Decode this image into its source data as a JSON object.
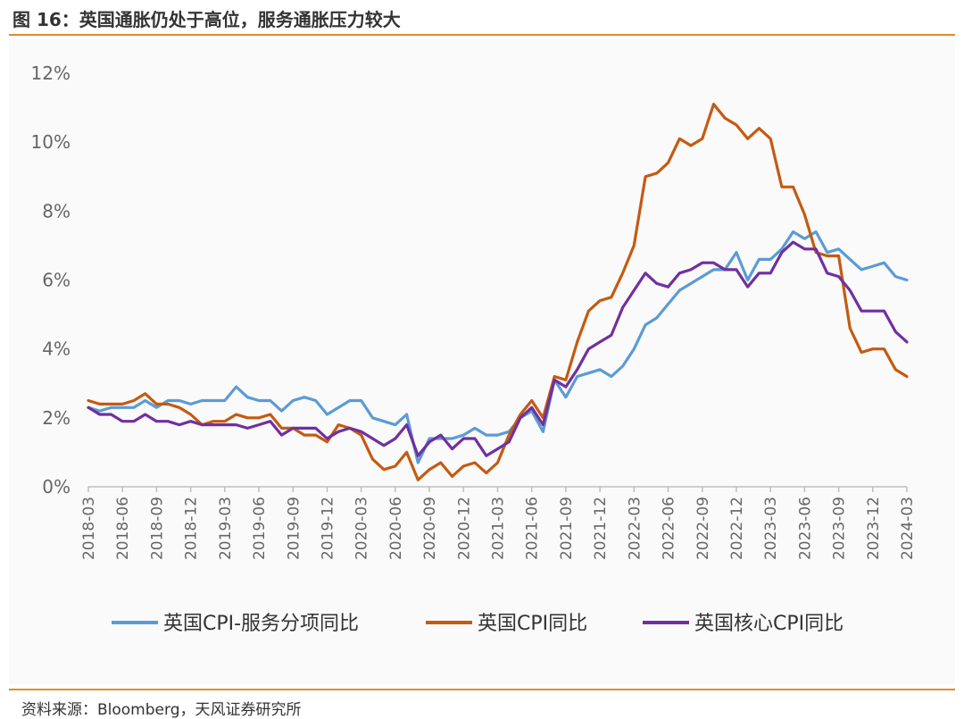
{
  "header": {
    "title": "图 16：英国通胀仍处于高位，服务通胀压力较大"
  },
  "footer": {
    "source": "资料来源：Bloomberg，天风证券研究所"
  },
  "colors": {
    "accent": "#e08a2c",
    "services": "#5b9bd5",
    "headline": "#c55a11",
    "core": "#7030a0"
  },
  "chart_data": {
    "type": "line",
    "xlabel": "",
    "ylabel": "",
    "ylim": [
      0,
      12
    ],
    "y_ticks": [
      "0%",
      "2%",
      "4%",
      "6%",
      "8%",
      "10%",
      "12%"
    ],
    "x_ticks": [
      "2018-03",
      "2018-06",
      "2018-09",
      "2018-12",
      "2019-03",
      "2019-06",
      "2019-09",
      "2019-12",
      "2020-03",
      "2020-06",
      "2020-09",
      "2020-12",
      "2021-03",
      "2021-06",
      "2021-09",
      "2021-12",
      "2022-03",
      "2022-06",
      "2022-09",
      "2022-12",
      "2023-03",
      "2023-06",
      "2023-09",
      "2023-12",
      "2024-03"
    ],
    "x_start": "2018-03",
    "grid": false,
    "legend": "bottom",
    "series": [
      {
        "name": "英国CPI-服务分项同比",
        "color": "#5b9bd5",
        "values": [
          2.3,
          2.2,
          2.3,
          2.3,
          2.3,
          2.5,
          2.3,
          2.5,
          2.5,
          2.4,
          2.5,
          2.5,
          2.5,
          2.9,
          2.6,
          2.5,
          2.5,
          2.2,
          2.5,
          2.6,
          2.5,
          2.1,
          2.3,
          2.5,
          2.5,
          2.0,
          1.9,
          1.8,
          2.1,
          0.7,
          1.4,
          1.4,
          1.4,
          1.5,
          1.7,
          1.5,
          1.5,
          1.6,
          2.0,
          2.2,
          1.6,
          3.1,
          2.6,
          3.2,
          3.3,
          3.4,
          3.2,
          3.5,
          4.0,
          4.7,
          4.9,
          5.3,
          5.7,
          5.9,
          6.1,
          6.3,
          6.3,
          6.8,
          6.0,
          6.6,
          6.6,
          6.9,
          7.4,
          7.2,
          7.4,
          6.8,
          6.9,
          6.6,
          6.3,
          6.4,
          6.5,
          6.1,
          6.0
        ]
      },
      {
        "name": "英国CPI同比",
        "color": "#c55a11",
        "values": [
          2.5,
          2.4,
          2.4,
          2.4,
          2.5,
          2.7,
          2.4,
          2.4,
          2.3,
          2.1,
          1.8,
          1.9,
          1.9,
          2.1,
          2.0,
          2.0,
          2.1,
          1.7,
          1.7,
          1.5,
          1.5,
          1.3,
          1.8,
          1.7,
          1.5,
          0.8,
          0.5,
          0.6,
          1.0,
          0.2,
          0.5,
          0.7,
          0.3,
          0.6,
          0.7,
          0.4,
          0.7,
          1.5,
          2.1,
          2.5,
          2.0,
          3.2,
          3.1,
          4.2,
          5.1,
          5.4,
          5.5,
          6.2,
          7.0,
          9.0,
          9.1,
          9.4,
          10.1,
          9.9,
          10.1,
          11.1,
          10.7,
          10.5,
          10.1,
          10.4,
          10.1,
          8.7,
          8.7,
          7.9,
          6.8,
          6.7,
          6.7,
          4.6,
          3.9,
          4.0,
          4.0,
          3.4,
          3.2
        ]
      },
      {
        "name": "英国核心CPI同比",
        "color": "#7030a0",
        "values": [
          2.3,
          2.1,
          2.1,
          1.9,
          1.9,
          2.1,
          1.9,
          1.9,
          1.8,
          1.9,
          1.8,
          1.8,
          1.8,
          1.8,
          1.7,
          1.8,
          1.9,
          1.5,
          1.7,
          1.7,
          1.7,
          1.4,
          1.6,
          1.7,
          1.6,
          1.4,
          1.2,
          1.4,
          1.8,
          0.9,
          1.3,
          1.5,
          1.1,
          1.4,
          1.4,
          0.9,
          1.1,
          1.3,
          2.0,
          2.3,
          1.8,
          3.1,
          2.9,
          3.4,
          4.0,
          4.2,
          4.4,
          5.2,
          5.7,
          6.2,
          5.9,
          5.8,
          6.2,
          6.3,
          6.5,
          6.5,
          6.3,
          6.3,
          5.8,
          6.2,
          6.2,
          6.8,
          7.1,
          6.9,
          6.9,
          6.2,
          6.1,
          5.7,
          5.1,
          5.1,
          5.1,
          4.5,
          4.2
        ]
      }
    ]
  }
}
